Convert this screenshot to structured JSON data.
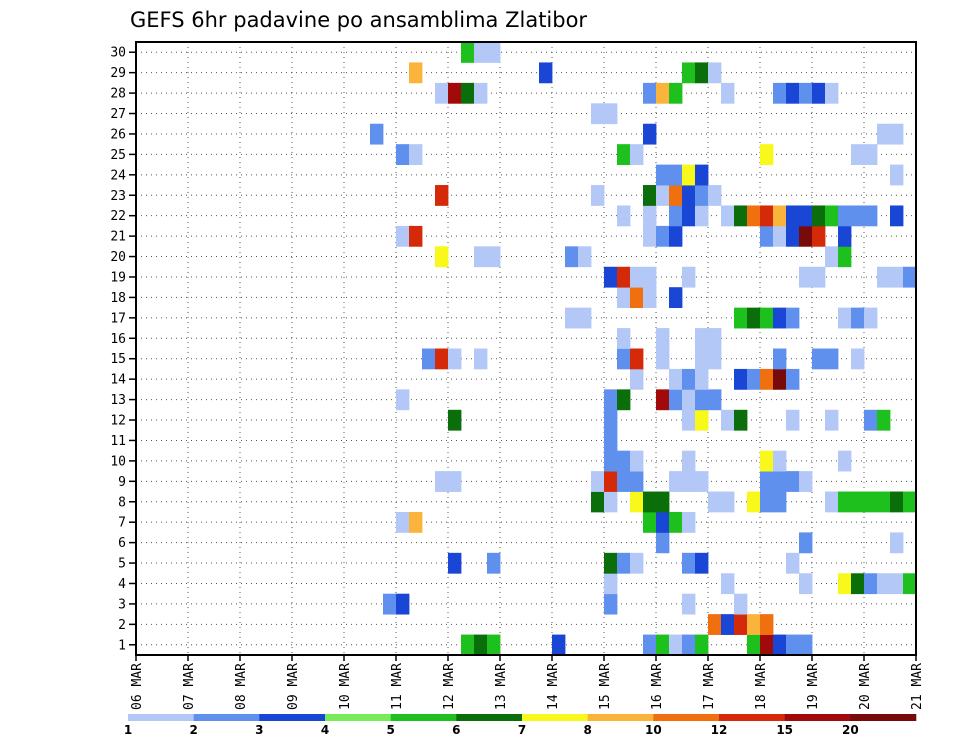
{
  "chart_data": {
    "type": "heatmap",
    "title": "GEFS 6hr padavine po ansamblima Zlatibor",
    "xlabel": "",
    "ylabel": "",
    "x_ticks": [
      "06 MAR",
      "07 MAR",
      "08 MAR",
      "09 MAR",
      "10 MAR",
      "11 MAR",
      "12 MAR",
      "13 MAR",
      "14 MAR",
      "15 MAR",
      "16 MAR",
      "17 MAR",
      "18 MAR",
      "19 MAR",
      "20 MAR",
      "21 MAR"
    ],
    "y_ticks": [
      1,
      2,
      3,
      4,
      5,
      6,
      7,
      8,
      9,
      10,
      11,
      12,
      13,
      14,
      15,
      16,
      17,
      18,
      19,
      20,
      21,
      22,
      23,
      24,
      25,
      26,
      27,
      28,
      29,
      30
    ],
    "xlim": [
      0,
      60
    ],
    "ylim": [
      0.5,
      30.5
    ],
    "x_unit": "6h steps from 06 MAR 00Z",
    "grid": true,
    "legend": {
      "placement": "bottom",
      "thresholds": [
        "1",
        "2",
        "3",
        "4",
        "5",
        "6",
        "7",
        "8",
        "10",
        "12",
        "15",
        "20"
      ],
      "colors": [
        "#b4c8f8",
        "#6090ee",
        "#1a46d6",
        "#78ec58",
        "#1ec01e",
        "#0a6e0a",
        "#f8f81a",
        "#fab43c",
        "#f07010",
        "#d52a0a",
        "#a00a0a",
        "#780a0a"
      ]
    },
    "cells": [
      [
        49,
        1,
        5
      ],
      [
        50,
        1,
        6
      ],
      [
        51,
        1,
        5
      ],
      [
        56,
        1,
        3
      ],
      [
        63,
        1,
        2
      ],
      [
        64,
        1,
        5
      ],
      [
        65,
        1,
        1
      ],
      [
        66,
        1,
        2
      ],
      [
        67,
        1,
        5
      ],
      [
        71,
        1,
        5
      ],
      [
        72,
        1,
        11
      ],
      [
        73,
        1,
        3
      ],
      [
        74,
        1,
        2
      ],
      [
        75,
        1,
        2
      ],
      [
        68,
        2,
        9
      ],
      [
        69,
        2,
        3
      ],
      [
        70,
        2,
        10
      ],
      [
        71,
        2,
        8
      ],
      [
        72,
        2,
        9
      ],
      [
        43,
        3,
        2
      ],
      [
        44,
        3,
        3
      ],
      [
        60,
        3,
        2
      ],
      [
        66,
        3,
        1
      ],
      [
        70,
        3,
        1
      ],
      [
        60,
        4,
        1
      ],
      [
        69,
        4,
        1
      ],
      [
        75,
        4,
        1
      ],
      [
        78,
        4,
        7
      ],
      [
        79,
        4,
        6
      ],
      [
        80,
        4,
        2
      ],
      [
        81,
        4,
        1
      ],
      [
        82,
        4,
        1
      ],
      [
        83,
        4,
        5
      ],
      [
        48,
        5,
        3
      ],
      [
        51,
        5,
        2
      ],
      [
        60,
        5,
        6
      ],
      [
        61,
        5,
        2
      ],
      [
        62,
        5,
        1
      ],
      [
        66,
        5,
        2
      ],
      [
        67,
        5,
        3
      ],
      [
        74,
        5,
        1
      ],
      [
        64,
        6,
        2
      ],
      [
        75,
        6,
        2
      ],
      [
        82,
        6,
        1
      ],
      [
        44,
        7,
        1
      ],
      [
        45,
        7,
        8
      ],
      [
        63,
        7,
        5
      ],
      [
        64,
        7,
        3
      ],
      [
        65,
        7,
        5
      ],
      [
        66,
        7,
        1
      ],
      [
        59,
        8,
        6
      ],
      [
        60,
        8,
        1
      ],
      [
        62,
        8,
        7
      ],
      [
        63,
        8,
        6
      ],
      [
        64,
        8,
        6
      ],
      [
        68,
        8,
        1
      ],
      [
        69,
        8,
        1
      ],
      [
        71,
        8,
        7
      ],
      [
        72,
        8,
        2
      ],
      [
        73,
        8,
        2
      ],
      [
        77,
        8,
        1
      ],
      [
        78,
        8,
        5
      ],
      [
        79,
        8,
        5
      ],
      [
        80,
        8,
        5
      ],
      [
        81,
        8,
        5
      ],
      [
        82,
        8,
        6
      ],
      [
        83,
        8,
        5
      ],
      [
        47,
        9,
        1
      ],
      [
        48,
        9,
        1
      ],
      [
        59,
        9,
        1
      ],
      [
        60,
        9,
        10
      ],
      [
        61,
        9,
        2
      ],
      [
        62,
        9,
        2
      ],
      [
        65,
        9,
        1
      ],
      [
        66,
        9,
        1
      ],
      [
        67,
        9,
        1
      ],
      [
        72,
        9,
        2
      ],
      [
        73,
        9,
        2
      ],
      [
        74,
        9,
        2
      ],
      [
        75,
        9,
        1
      ],
      [
        60,
        10,
        2
      ],
      [
        61,
        10,
        2
      ],
      [
        62,
        10,
        1
      ],
      [
        66,
        10,
        1
      ],
      [
        72,
        10,
        7
      ],
      [
        73,
        10,
        1
      ],
      [
        78,
        10,
        1
      ],
      [
        60,
        11,
        2
      ],
      [
        48,
        12,
        6
      ],
      [
        60,
        12,
        2
      ],
      [
        66,
        12,
        1
      ],
      [
        67,
        12,
        7
      ],
      [
        69,
        12,
        1
      ],
      [
        70,
        12,
        6
      ],
      [
        74,
        12,
        1
      ],
      [
        77,
        12,
        1
      ],
      [
        80,
        12,
        2
      ],
      [
        81,
        12,
        5
      ],
      [
        44,
        13,
        1
      ],
      [
        60,
        13,
        2
      ],
      [
        61,
        13,
        6
      ],
      [
        64,
        13,
        11
      ],
      [
        65,
        13,
        2
      ],
      [
        66,
        13,
        1
      ],
      [
        67,
        13,
        2
      ],
      [
        68,
        13,
        2
      ],
      [
        62,
        14,
        1
      ],
      [
        65,
        14,
        1
      ],
      [
        66,
        14,
        2
      ],
      [
        67,
        14,
        1
      ],
      [
        70,
        14,
        3
      ],
      [
        71,
        14,
        2
      ],
      [
        72,
        14,
        9
      ],
      [
        73,
        14,
        12
      ],
      [
        74,
        14,
        2
      ],
      [
        46,
        15,
        2
      ],
      [
        47,
        15,
        10
      ],
      [
        48,
        15,
        1
      ],
      [
        50,
        15,
        1
      ],
      [
        61,
        15,
        2
      ],
      [
        62,
        15,
        10
      ],
      [
        64,
        15,
        1
      ],
      [
        67,
        15,
        1
      ],
      [
        68,
        15,
        1
      ],
      [
        73,
        15,
        2
      ],
      [
        76,
        15,
        2
      ],
      [
        77,
        15,
        2
      ],
      [
        79,
        15,
        1
      ],
      [
        61,
        16,
        1
      ],
      [
        64,
        16,
        1
      ],
      [
        67,
        16,
        1
      ],
      [
        68,
        16,
        1
      ],
      [
        57,
        17,
        1
      ],
      [
        58,
        17,
        1
      ],
      [
        70,
        17,
        5
      ],
      [
        71,
        17,
        6
      ],
      [
        72,
        17,
        5
      ],
      [
        73,
        17,
        3
      ],
      [
        74,
        17,
        2
      ],
      [
        78,
        17,
        1
      ],
      [
        79,
        17,
        2
      ],
      [
        80,
        17,
        1
      ],
      [
        61,
        18,
        1
      ],
      [
        62,
        18,
        9
      ],
      [
        63,
        18,
        1
      ],
      [
        65,
        18,
        3
      ],
      [
        60,
        19,
        3
      ],
      [
        61,
        19,
        10
      ],
      [
        62,
        19,
        1
      ],
      [
        63,
        19,
        1
      ],
      [
        66,
        19,
        1
      ],
      [
        75,
        19,
        1
      ],
      [
        76,
        19,
        1
      ],
      [
        81,
        19,
        1
      ],
      [
        82,
        19,
        1
      ],
      [
        83,
        19,
        2
      ],
      [
        47,
        20,
        7
      ],
      [
        50,
        20,
        1
      ],
      [
        51,
        20,
        1
      ],
      [
        57,
        20,
        2
      ],
      [
        58,
        20,
        1
      ],
      [
        77,
        20,
        1
      ],
      [
        78,
        20,
        5
      ],
      [
        44,
        21,
        1
      ],
      [
        45,
        21,
        10
      ],
      [
        63,
        21,
        1
      ],
      [
        64,
        21,
        2
      ],
      [
        65,
        21,
        3
      ],
      [
        72,
        21,
        2
      ],
      [
        73,
        21,
        1
      ],
      [
        74,
        21,
        3
      ],
      [
        75,
        21,
        12
      ],
      [
        76,
        21,
        10
      ],
      [
        78,
        21,
        3
      ],
      [
        61,
        22,
        1
      ],
      [
        63,
        22,
        1
      ],
      [
        65,
        22,
        2
      ],
      [
        66,
        22,
        3
      ],
      [
        67,
        22,
        1
      ],
      [
        69,
        22,
        1
      ],
      [
        70,
        22,
        6
      ],
      [
        71,
        22,
        9
      ],
      [
        72,
        22,
        10
      ],
      [
        73,
        22,
        8
      ],
      [
        74,
        22,
        3
      ],
      [
        75,
        22,
        3
      ],
      [
        76,
        22,
        6
      ],
      [
        77,
        22,
        5
      ],
      [
        78,
        22,
        2
      ],
      [
        79,
        22,
        2
      ],
      [
        80,
        22,
        2
      ],
      [
        82,
        22,
        3
      ],
      [
        47,
        23,
        10
      ],
      [
        59,
        23,
        1
      ],
      [
        63,
        23,
        6
      ],
      [
        64,
        23,
        1
      ],
      [
        65,
        23,
        9
      ],
      [
        66,
        23,
        3
      ],
      [
        67,
        23,
        2
      ],
      [
        68,
        23,
        1
      ],
      [
        64,
        24,
        2
      ],
      [
        65,
        24,
        2
      ],
      [
        66,
        24,
        7
      ],
      [
        67,
        24,
        3
      ],
      [
        82,
        24,
        1
      ],
      [
        44,
        25,
        2
      ],
      [
        45,
        25,
        1
      ],
      [
        61,
        25,
        5
      ],
      [
        62,
        25,
        1
      ],
      [
        72,
        25,
        7
      ],
      [
        79,
        25,
        1
      ],
      [
        80,
        25,
        1
      ],
      [
        42,
        26,
        2
      ],
      [
        63,
        26,
        3
      ],
      [
        81,
        26,
        1
      ],
      [
        82,
        26,
        1
      ],
      [
        59,
        27,
        1
      ],
      [
        60,
        27,
        1
      ],
      [
        47,
        28,
        1
      ],
      [
        48,
        28,
        11
      ],
      [
        49,
        28,
        6
      ],
      [
        50,
        28,
        1
      ],
      [
        63,
        28,
        2
      ],
      [
        64,
        28,
        8
      ],
      [
        65,
        28,
        5
      ],
      [
        69,
        28,
        1
      ],
      [
        73,
        28,
        2
      ],
      [
        74,
        28,
        3
      ],
      [
        75,
        28,
        2
      ],
      [
        76,
        28,
        3
      ],
      [
        77,
        28,
        1
      ],
      [
        45,
        29,
        8
      ],
      [
        55,
        29,
        3
      ],
      [
        66,
        29,
        5
      ],
      [
        67,
        29,
        6
      ],
      [
        68,
        29,
        1
      ],
      [
        49,
        30,
        5
      ],
      [
        50,
        30,
        1
      ],
      [
        51,
        30,
        1
      ]
    ]
  }
}
